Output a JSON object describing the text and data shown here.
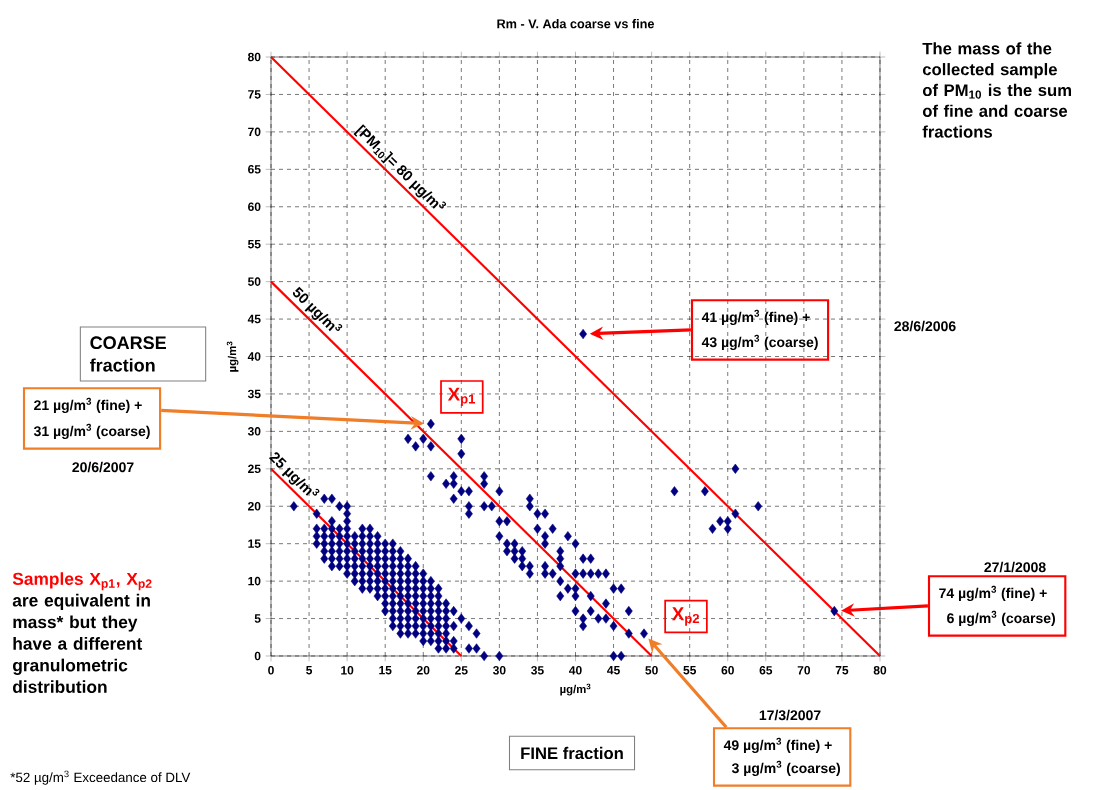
{
  "chart_data": {
    "type": "scatter",
    "title": "Rm - V. Ada coarse vs fine",
    "xlabel": "µg/m$^{3}$",
    "ylabel": "µg/m$^{3}$",
    "xlim": [
      0,
      80
    ],
    "ylim": [
      0,
      80
    ],
    "xticks": [
      0,
      5,
      10,
      15,
      20,
      25,
      30,
      35,
      40,
      45,
      50,
      55,
      60,
      65,
      70,
      75,
      80
    ],
    "yticks": [
      0,
      5,
      10,
      15,
      20,
      25,
      30,
      35,
      40,
      45,
      50,
      55,
      60,
      65,
      70,
      75,
      80
    ],
    "grid": true,
    "marker": "diamond",
    "series": [
      {
        "type": "scatter",
        "color": "#000080",
        "x": [
          3,
          6,
          6,
          6,
          6,
          7,
          7,
          7,
          7,
          7,
          7,
          8,
          8,
          8,
          8,
          8,
          8,
          8,
          8,
          9,
          9,
          9,
          9,
          9,
          9,
          9,
          10,
          10,
          10,
          10,
          10,
          10,
          10,
          10,
          10,
          10,
          11,
          11,
          11,
          11,
          11,
          11,
          11,
          12,
          12,
          12,
          12,
          12,
          12,
          12,
          12,
          12,
          13,
          13,
          13,
          13,
          13,
          13,
          13,
          13,
          13,
          14,
          14,
          14,
          14,
          14,
          14,
          14,
          14,
          14,
          15,
          15,
          15,
          15,
          15,
          15,
          15,
          15,
          15,
          15,
          16,
          16,
          16,
          16,
          16,
          16,
          16,
          16,
          16,
          16,
          16,
          16,
          17,
          17,
          17,
          17,
          17,
          17,
          17,
          17,
          17,
          17,
          17,
          17,
          18,
          18,
          18,
          18,
          18,
          18,
          18,
          18,
          18,
          18,
          18,
          19,
          19,
          19,
          19,
          19,
          19,
          19,
          19,
          19,
          19,
          20,
          20,
          20,
          20,
          20,
          20,
          20,
          20,
          20,
          20,
          21,
          21,
          21,
          21,
          21,
          21,
          21,
          21,
          21,
          22,
          22,
          22,
          22,
          22,
          22,
          22,
          22,
          22,
          23,
          23,
          23,
          23,
          23,
          23,
          23,
          24,
          24,
          24,
          24,
          25,
          26,
          26,
          27,
          27,
          28,
          30,
          18,
          19,
          20,
          21,
          21,
          25,
          25,
          21,
          23,
          24,
          24,
          24,
          25,
          26,
          28,
          28,
          26,
          26,
          28,
          29,
          30,
          30,
          31,
          30,
          34,
          34,
          35,
          36,
          35,
          37,
          36,
          36,
          39,
          40,
          31,
          32,
          31,
          32,
          33,
          32,
          33,
          33,
          34,
          34,
          38,
          38,
          36,
          36,
          37,
          38,
          41,
          42,
          40,
          41,
          42,
          43,
          44,
          38,
          39,
          40,
          38,
          40,
          42,
          45,
          46,
          44,
          40,
          42,
          43,
          44,
          41,
          41,
          45,
          47,
          47,
          49,
          45,
          46,
          41,
          53,
          57,
          61,
          64,
          61,
          60,
          59,
          58,
          60,
          74
        ],
        "values": [
          20,
          15,
          16,
          17,
          19,
          13,
          14,
          15,
          16,
          17,
          21,
          12,
          13,
          14,
          15,
          16,
          17,
          18,
          21,
          12,
          13,
          14,
          15,
          16,
          17,
          20,
          11,
          12,
          13,
          14,
          15,
          16,
          17,
          18,
          19,
          20,
          10,
          11,
          12,
          13,
          14,
          15,
          16,
          9,
          10,
          11,
          12,
          13,
          14,
          15,
          16,
          17,
          9,
          10,
          11,
          12,
          13,
          14,
          15,
          16,
          17,
          8,
          9,
          10,
          11,
          12,
          13,
          14,
          15,
          16,
          6,
          7,
          8,
          9,
          10,
          11,
          12,
          13,
          14,
          15,
          4,
          5,
          6,
          7,
          8,
          9,
          10,
          11,
          12,
          13,
          14,
          15,
          3,
          4,
          5,
          6,
          7,
          8,
          9,
          10,
          11,
          12,
          13,
          14,
          3,
          4,
          5,
          6,
          7,
          8,
          9,
          10,
          11,
          12,
          13,
          3,
          4,
          5,
          6,
          7,
          8,
          9,
          10,
          11,
          12,
          2,
          3,
          4,
          5,
          6,
          7,
          8,
          9,
          10,
          11,
          2,
          3,
          4,
          5,
          6,
          7,
          8,
          9,
          10,
          1,
          2,
          3,
          4,
          5,
          6,
          7,
          8,
          9,
          1,
          2,
          3,
          4,
          5,
          6,
          7,
          1,
          2,
          4,
          6,
          5,
          1,
          4,
          1,
          3,
          0,
          0,
          29,
          28,
          29,
          28,
          31,
          29,
          27,
          24,
          23,
          24,
          23,
          21,
          22,
          22,
          24,
          23,
          20,
          19,
          20,
          20,
          22,
          18,
          18,
          16,
          21,
          20,
          19,
          19,
          17,
          17,
          16,
          15,
          16,
          15,
          15,
          15,
          14,
          14,
          14,
          13,
          13,
          12,
          12,
          11,
          14,
          13,
          12,
          11,
          11,
          12,
          13,
          13,
          11,
          11,
          11,
          11,
          11,
          10,
          9,
          9,
          8,
          8,
          8,
          9,
          9,
          7,
          6,
          6,
          5,
          5,
          5,
          4,
          4,
          6,
          3,
          3,
          0,
          0,
          43,
          22,
          22,
          25,
          20,
          19,
          18,
          18,
          17,
          17,
          6
        ]
      },
      {
        "type": "line",
        "color": "#ff0000",
        "marker": "none",
        "x": [
          0,
          80
        ],
        "values": [
          80,
          0
        ]
      },
      {
        "type": "line",
        "color": "#ff0000",
        "marker": "none",
        "x": [
          0,
          50
        ],
        "values": [
          50,
          0
        ]
      },
      {
        "type": "line",
        "color": "#ff0000",
        "marker": "none",
        "x": [
          0,
          25
        ],
        "values": [
          25,
          0
        ]
      }
    ],
    "annotations": [
      {
        "text": "[PM$_{10}$]= 80 µg/m$^{3}$",
        "x": 16,
        "y": 64
      },
      {
        "text": "50 µg/m$^{3}$",
        "x": 5,
        "y": 45
      },
      {
        "text": "25 µg/m$^{3}$",
        "x": 2,
        "y": 23
      },
      {
        "text": "X$_{p1}$",
        "x": 21,
        "y": 31
      },
      {
        "text": "X$_{p2}$",
        "x": 49,
        "y": 3
      },
      "41 µg/m$^{3}$ (fine) +",
      "43 µg/m$^{3}$ (coarse)",
      "28/6/2006",
      "21 µg/m$^{3}$ (fine) +",
      "31 µg/m$^{3}$ (coarse)",
      "20/6/2007",
      "74 µg/m$^{3}$ (fine) +",
      "6 µg/m$^{3}$ (coarse)",
      "27/1/2008",
      "49 µg/m$^{3}$ (fine) +",
      "3 µg/m$^{3}$ (coarse)",
      "17/3/2007",
      "COARSE fraction",
      "FINE fraction",
      "The mass of the collected sample of PM$_{10}$ is the sum of fine and coarse fractions",
      "Samples X$_{p1}$, X$_{p2}$",
      "are equivalent in mass* but they have a different granulometric distribution",
      "*52 µg/m$^{3}$ Exceedance of DLV"
    ]
  }
}
